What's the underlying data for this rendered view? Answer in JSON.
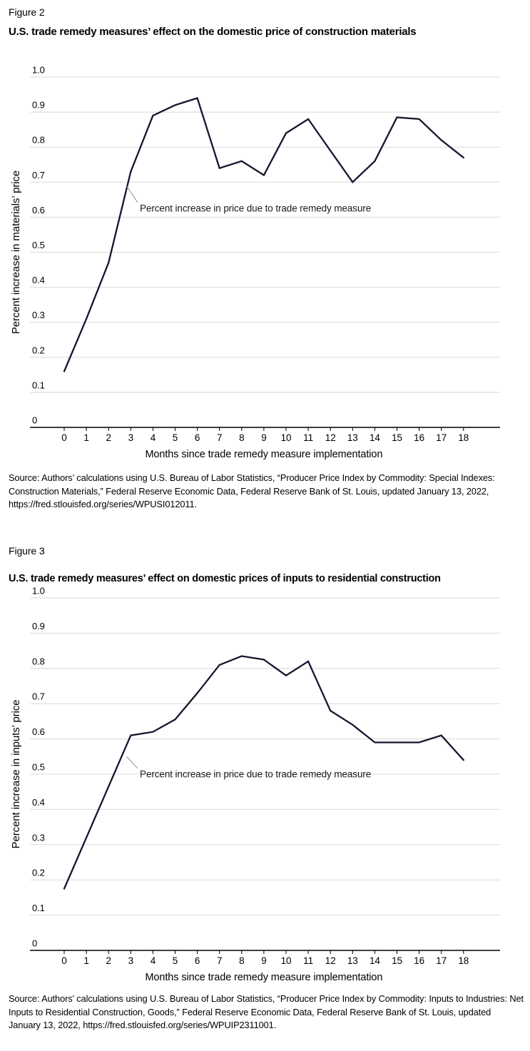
{
  "page": {
    "background": "#ffffff"
  },
  "colors": {
    "line": "#15152e",
    "grid": "#d8d8d8",
    "axis": "#000000",
    "tick_text": "#000000",
    "annotation_leader": "#a0a0a0",
    "annotation_text": "#1a1a1a"
  },
  "chart_data": [
    {
      "type": "line",
      "figure_label": "Figure 2",
      "title": "U.S. trade remedy measures’ effect on the domestic price of construction materials",
      "xlabel": "Months since trade remedy measure implementation",
      "ylabel": "Percent increase in materials’ price",
      "x": [
        0,
        1,
        2,
        3,
        4,
        5,
        6,
        7,
        8,
        9,
        10,
        11,
        12,
        13,
        14,
        15,
        16,
        17,
        18
      ],
      "values": [
        0.16,
        0.31,
        0.47,
        0.73,
        0.89,
        0.92,
        0.94,
        0.74,
        0.76,
        0.72,
        0.84,
        0.88,
        0.79,
        0.7,
        0.76,
        0.885,
        0.88,
        0.82,
        0.77
      ],
      "ylim": [
        0,
        1.0
      ],
      "ytick_labels": [
        "0",
        "0.1",
        "0.2",
        "0.3",
        "0.4",
        "0.5",
        "0.6",
        "0.7",
        "0.8",
        "0.9",
        "1.0"
      ],
      "xtick_labels": [
        "0",
        "1",
        "2",
        "3",
        "4",
        "5",
        "6",
        "7",
        "8",
        "9",
        "10",
        "11",
        "12",
        "13",
        "14",
        "15",
        "16",
        "17",
        "18"
      ],
      "grid": true,
      "legend": "none",
      "line_color": "#15152e",
      "annotation": {
        "text": "Percent increase in price due to trade remedy measure",
        "text_month": 3.41,
        "text_value": 0.625,
        "leader_from": {
          "month": 2.83,
          "value": 0.688
        },
        "leader_to": {
          "month": 3.31,
          "value": 0.642
        }
      },
      "source": "Source: Authors’ calculations using U.S. Bureau of Labor Statistics, “Producer Price Index by Commodity: Special Indexes: Construction Materials,” Federal Reserve Economic Data, Federal Reserve Bank of St. Louis, updated January 13, 2022, https://fred.stlouisfed.org/series/WPUSI012011."
    },
    {
      "type": "line",
      "figure_label": "Figure 3",
      "title": "U.S. trade remedy measures’ effect on domestic prices of inputs to residential construction",
      "xlabel": "Months since trade remedy measure implementation",
      "ylabel": "Percent increase in inputs’ price",
      "x": [
        0,
        1,
        2,
        3,
        4,
        5,
        6,
        7,
        8,
        9,
        10,
        11,
        12,
        13,
        14,
        15,
        16,
        17,
        18
      ],
      "values": [
        0.175,
        0.32,
        0.465,
        0.61,
        0.62,
        0.655,
        0.73,
        0.81,
        0.835,
        0.825,
        0.78,
        0.82,
        0.68,
        0.64,
        0.59,
        0.59,
        0.59,
        0.61,
        0.54
      ],
      "ylim": [
        0,
        1.0
      ],
      "ytick_labels": [
        "0",
        "0.1",
        "0.2",
        "0.3",
        "0.4",
        "0.5",
        "0.6",
        "0.7",
        "0.8",
        "0.9",
        "1.0"
      ],
      "xtick_labels": [
        "0",
        "1",
        "2",
        "3",
        "4",
        "5",
        "6",
        "7",
        "8",
        "9",
        "10",
        "11",
        "12",
        "13",
        "14",
        "15",
        "16",
        "17",
        "18"
      ],
      "grid": true,
      "legend": "none",
      "line_color": "#15152e",
      "annotation": {
        "text": "Percent increase in price due to trade remedy measure",
        "text_month": 3.41,
        "text_value": 0.5,
        "leader_from": {
          "month": 2.82,
          "value": 0.55
        },
        "leader_to": {
          "month": 3.3,
          "value": 0.517
        }
      },
      "source": "Source: Authors’ calculations using U.S. Bureau of Labor Statistics, “Producer Price Index by Commodity: Inputs to Industries: Net Inputs to Residential Construction, Goods,” Federal Reserve Economic Data, Federal Reserve Bank of St. Louis, updated January 13, 2022, https://fred.stlouisfed.org/series/WPUIP2311001."
    }
  ]
}
